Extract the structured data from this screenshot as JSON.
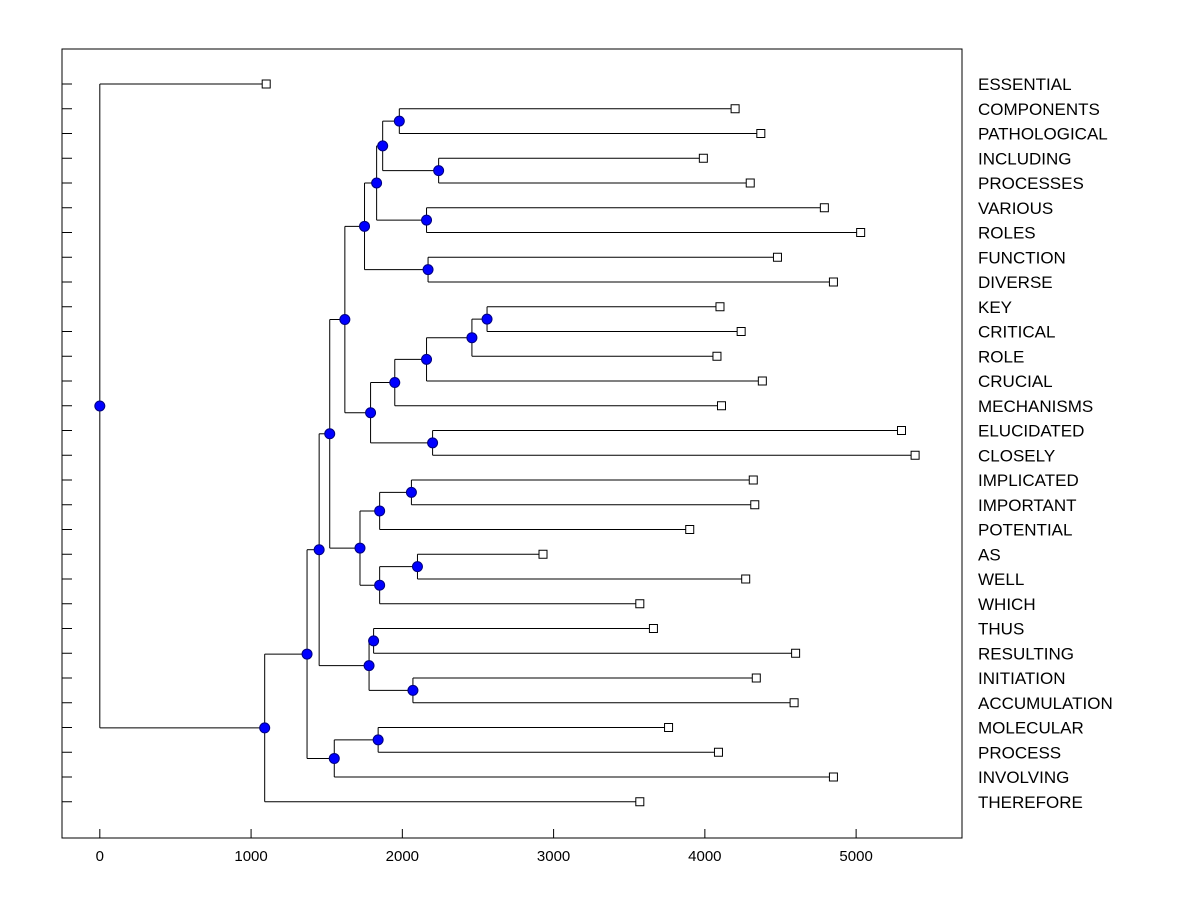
{
  "chart_data": {
    "type": "dendrogram",
    "title": "",
    "xlabel": "",
    "ylabel": "",
    "xlim": [
      -250,
      5700
    ],
    "xticks": [
      0,
      1000,
      2000,
      3000,
      4000,
      5000
    ],
    "grid": false,
    "colors": {
      "node_fill": "#0000ff",
      "node_stroke": "#000080",
      "line": "#000000",
      "leaf_fill": "#ffffff"
    },
    "leaves": [
      {
        "label": "ESSENTIAL",
        "value": 1100
      },
      {
        "label": "COMPONENTS",
        "value": 4200
      },
      {
        "label": "PATHOLOGICAL",
        "value": 4370
      },
      {
        "label": "INCLUDING",
        "value": 3990
      },
      {
        "label": "PROCESSES",
        "value": 4300
      },
      {
        "label": "VARIOUS",
        "value": 4790
      },
      {
        "label": "ROLES",
        "value": 5030
      },
      {
        "label": "FUNCTION",
        "value": 4480
      },
      {
        "label": "DIVERSE",
        "value": 4850
      },
      {
        "label": "KEY",
        "value": 4100
      },
      {
        "label": "CRITICAL",
        "value": 4240
      },
      {
        "label": "ROLE",
        "value": 4080
      },
      {
        "label": "CRUCIAL",
        "value": 4380
      },
      {
        "label": "MECHANISMS",
        "value": 4110
      },
      {
        "label": "ELUCIDATED",
        "value": 5300
      },
      {
        "label": "CLOSELY",
        "value": 5390
      },
      {
        "label": "IMPLICATED",
        "value": 4320
      },
      {
        "label": "IMPORTANT",
        "value": 4330
      },
      {
        "label": "POTENTIAL",
        "value": 3900
      },
      {
        "label": "AS",
        "value": 2930
      },
      {
        "label": "WELL",
        "value": 4270
      },
      {
        "label": "WHICH",
        "value": 3570
      },
      {
        "label": "THUS",
        "value": 3660
      },
      {
        "label": "RESULTING",
        "value": 4600
      },
      {
        "label": "INITIATION",
        "value": 4340
      },
      {
        "label": "ACCUMULATION",
        "value": 4590
      },
      {
        "label": "MOLECULAR",
        "value": 3760
      },
      {
        "label": "PROCESS",
        "value": 4090
      },
      {
        "label": "INVOLVING",
        "value": 4850
      },
      {
        "label": "THEREFORE",
        "value": 3570
      }
    ],
    "nodes": [
      {
        "id": "n1",
        "value": 1980,
        "children": [
          1,
          2
        ]
      },
      {
        "id": "n2",
        "value": 2240,
        "children": [
          3,
          4
        ]
      },
      {
        "id": "n3",
        "value": 1870,
        "children": [
          "n1",
          "n2"
        ]
      },
      {
        "id": "n4",
        "value": 2160,
        "children": [
          5,
          6
        ]
      },
      {
        "id": "n5",
        "value": 1830,
        "children": [
          "n3",
          "n4"
        ]
      },
      {
        "id": "n6",
        "value": 2170,
        "children": [
          7,
          8
        ]
      },
      {
        "id": "n7",
        "value": 1750,
        "children": [
          "n5",
          "n6"
        ]
      },
      {
        "id": "n8",
        "value": 2560,
        "children": [
          9,
          10
        ]
      },
      {
        "id": "n9",
        "value": 2460,
        "children": [
          "n8",
          11
        ]
      },
      {
        "id": "n10",
        "value": 2160,
        "children": [
          "n9",
          12
        ]
      },
      {
        "id": "n11",
        "value": 1950,
        "children": [
          "n10",
          13
        ]
      },
      {
        "id": "n12",
        "value": 2200,
        "children": [
          14,
          15
        ]
      },
      {
        "id": "n13",
        "value": 1790,
        "children": [
          "n11",
          "n12"
        ]
      },
      {
        "id": "n14",
        "value": 1620,
        "children": [
          "n7",
          "n13"
        ]
      },
      {
        "id": "n15",
        "value": 2060,
        "children": [
          16,
          17
        ]
      },
      {
        "id": "n16",
        "value": 1850,
        "children": [
          "n15",
          18
        ]
      },
      {
        "id": "n17",
        "value": 2100,
        "children": [
          19,
          20
        ]
      },
      {
        "id": "n18",
        "value": 1850,
        "children": [
          "n17",
          21
        ]
      },
      {
        "id": "n19",
        "value": 1720,
        "children": [
          "n16",
          "n18"
        ]
      },
      {
        "id": "n20",
        "value": 1520,
        "children": [
          "n14",
          "n19"
        ]
      },
      {
        "id": "n21",
        "value": 1810,
        "children": [
          22,
          23
        ]
      },
      {
        "id": "n22",
        "value": 2070,
        "children": [
          24,
          25
        ]
      },
      {
        "id": "n23",
        "value": 1780,
        "children": [
          "n21",
          "n22"
        ]
      },
      {
        "id": "n24",
        "value": 1450,
        "children": [
          "n20",
          "n23"
        ]
      },
      {
        "id": "n25",
        "value": 1840,
        "children": [
          26,
          27
        ]
      },
      {
        "id": "n26",
        "value": 1550,
        "children": [
          "n25",
          28
        ]
      },
      {
        "id": "n27",
        "value": 1370,
        "children": [
          "n24",
          "n26"
        ]
      },
      {
        "id": "n28",
        "value": 1090,
        "children": [
          "n27",
          29
        ]
      },
      {
        "id": "n29",
        "value": 0,
        "children": [
          0,
          "n28"
        ]
      }
    ]
  }
}
